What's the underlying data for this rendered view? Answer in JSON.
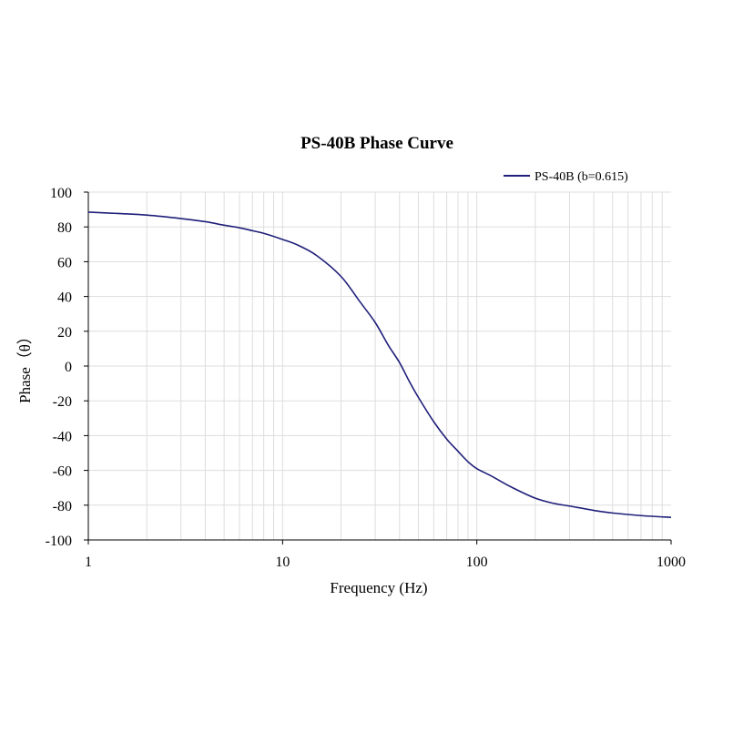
{
  "chart_data": {
    "type": "line",
    "title": "PS-40B Phase Curve",
    "xlabel": "Frequency (Hz)",
    "ylabel": "Phase（θ）",
    "x_scale": "log",
    "xlim": [
      1,
      1000
    ],
    "ylim": [
      -100,
      100
    ],
    "x_ticks": [
      1,
      10,
      100,
      1000
    ],
    "x_tick_labels": [
      "1",
      "10",
      "100",
      "1000"
    ],
    "y_ticks": [
      100,
      80,
      60,
      40,
      20,
      0,
      -20,
      -40,
      -60,
      -80,
      -100
    ],
    "y_tick_labels": [
      "100",
      "80",
      "60",
      "40",
      "20",
      "0",
      "-20",
      "-40",
      "-60",
      "-80",
      "-100"
    ],
    "grid": true,
    "legend_position": "top-right",
    "series": [
      {
        "name": "PS-40B (b=0.615)",
        "color": "#1f1f7a",
        "points": [
          [
            1,
            88.5
          ],
          [
            1.5,
            87.6
          ],
          [
            2,
            86.8
          ],
          [
            3,
            84.8
          ],
          [
            4,
            83.0
          ],
          [
            5,
            81.0
          ],
          [
            6,
            79.5
          ],
          [
            7,
            77.8
          ],
          [
            8,
            76.3
          ],
          [
            10,
            72.8
          ],
          [
            12,
            69.5
          ],
          [
            15,
            63.5
          ],
          [
            20,
            51.5
          ],
          [
            25,
            37.0
          ],
          [
            30,
            25.0
          ],
          [
            35,
            12.0
          ],
          [
            40,
            2.0
          ],
          [
            45,
            -9.0
          ],
          [
            50,
            -18.0
          ],
          [
            60,
            -32.0
          ],
          [
            70,
            -42.0
          ],
          [
            80,
            -49.0
          ],
          [
            90,
            -55.0
          ],
          [
            100,
            -59.0
          ],
          [
            120,
            -63.5
          ],
          [
            150,
            -69.5
          ],
          [
            200,
            -76.0
          ],
          [
            250,
            -79.0
          ],
          [
            300,
            -80.5
          ],
          [
            400,
            -83.0
          ],
          [
            500,
            -84.5
          ],
          [
            700,
            -86.0
          ],
          [
            1000,
            -87.0
          ]
        ]
      }
    ]
  }
}
